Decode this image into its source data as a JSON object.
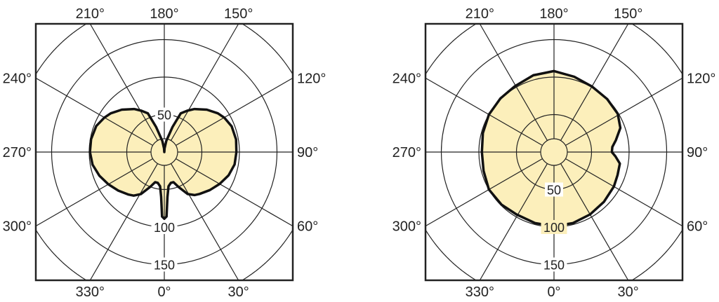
{
  "chart_data": [
    {
      "type": "polar",
      "angle_labels": [
        {
          "angle": 0,
          "text": "0°"
        },
        {
          "angle": 30,
          "text": "30°"
        },
        {
          "angle": 60,
          "text": "60°"
        },
        {
          "angle": 90,
          "text": "90°"
        },
        {
          "angle": 120,
          "text": "120°"
        },
        {
          "angle": 150,
          "text": "150°"
        },
        {
          "angle": 180,
          "text": "180°"
        },
        {
          "angle": 210,
          "text": "210°"
        },
        {
          "angle": 240,
          "text": "240°"
        },
        {
          "angle": 270,
          "text": "270°"
        },
        {
          "angle": 300,
          "text": "300°"
        },
        {
          "angle": 330,
          "text": "330°"
        }
      ],
      "radial_ticks": [
        {
          "value": 50,
          "text": "50"
        },
        {
          "value": 100,
          "text": "100"
        },
        {
          "value": 150,
          "text": "150"
        }
      ],
      "radial_rings": [
        50,
        100,
        150,
        200
      ],
      "ring_label_side": "top-for-50",
      "grid": true,
      "fill_color": "#fcefbb",
      "line_color": "#111111",
      "series": [
        {
          "points": [
            [
              0,
              89
            ],
            [
              2,
              86
            ],
            [
              4,
              60
            ],
            [
              7,
              46
            ],
            [
              12,
              42
            ],
            [
              17,
              42
            ],
            [
              22,
              50
            ],
            [
              29,
              64
            ],
            [
              35,
              70
            ],
            [
              40,
              73
            ],
            [
              50,
              79
            ],
            [
              60,
              85
            ],
            [
              70,
              91
            ],
            [
              80,
              95
            ],
            [
              90,
              96
            ],
            [
              100,
              97
            ],
            [
              111,
              96
            ],
            [
              120,
              92
            ],
            [
              126,
              88
            ],
            [
              135,
              80
            ],
            [
              145,
              70
            ],
            [
              151,
              63
            ],
            [
              157,
              56
            ],
            [
              162,
              35
            ],
            [
              170,
              15
            ],
            [
              176,
              5
            ],
            [
              180,
              0
            ],
            [
              184,
              5
            ],
            [
              190,
              15
            ],
            [
              198,
              35
            ],
            [
              203,
              56
            ],
            [
              209,
              63
            ],
            [
              215,
              70
            ],
            [
              225,
              80
            ],
            [
              234,
              88
            ],
            [
              240,
              92
            ],
            [
              249,
              97
            ],
            [
              260,
              99
            ],
            [
              270,
              99
            ],
            [
              280,
              97
            ],
            [
              290,
              92
            ],
            [
              300,
              86
            ],
            [
              310,
              80
            ],
            [
              320,
              74
            ],
            [
              325,
              71
            ],
            [
              331,
              64
            ],
            [
              338,
              50
            ],
            [
              343,
              42
            ],
            [
              348,
              42
            ],
            [
              353,
              46
            ],
            [
              356,
              60
            ],
            [
              358,
              86
            ],
            [
              360,
              89
            ]
          ]
        }
      ]
    },
    {
      "type": "polar",
      "angle_labels": [
        {
          "angle": 0,
          "text": "0°"
        },
        {
          "angle": 30,
          "text": "30°"
        },
        {
          "angle": 60,
          "text": "60°"
        },
        {
          "angle": 90,
          "text": "90°"
        },
        {
          "angle": 120,
          "text": "120°"
        },
        {
          "angle": 150,
          "text": "150°"
        },
        {
          "angle": 180,
          "text": "180°"
        },
        {
          "angle": 210,
          "text": "210°"
        },
        {
          "angle": 240,
          "text": "240°"
        },
        {
          "angle": 270,
          "text": "270°"
        },
        {
          "angle": 300,
          "text": "300°"
        },
        {
          "angle": 330,
          "text": "330°"
        }
      ],
      "radial_ticks": [
        {
          "value": 50,
          "text": "50"
        },
        {
          "value": 100,
          "text": "100"
        },
        {
          "value": 150,
          "text": "150"
        }
      ],
      "radial_rings": [
        50,
        100,
        150,
        200
      ],
      "ring_label_side": "bottom",
      "grid": true,
      "fill_color": "#fcefbb",
      "line_color": "#111111",
      "series": [
        {
          "points": [
            [
              0,
              99
            ],
            [
              15,
              98
            ],
            [
              30,
              96
            ],
            [
              45,
              94
            ],
            [
              60,
              92
            ],
            [
              70,
              90
            ],
            [
              80,
              89
            ],
            [
              86,
              82
            ],
            [
              90,
              77
            ],
            [
              95,
              78
            ],
            [
              101,
              84
            ],
            [
              110,
              94
            ],
            [
              121,
              99
            ],
            [
              135,
              100
            ],
            [
              150,
              101
            ],
            [
              165,
              104
            ],
            [
              180,
              108
            ],
            [
              195,
              106
            ],
            [
              211,
              102
            ],
            [
              225,
              101
            ],
            [
              240,
              100
            ],
            [
              255,
              98
            ],
            [
              270,
              96
            ],
            [
              285,
              97
            ],
            [
              300,
              100
            ],
            [
              315,
              99
            ],
            [
              329,
              97
            ],
            [
              345,
              98
            ],
            [
              360,
              99
            ]
          ]
        }
      ]
    }
  ]
}
